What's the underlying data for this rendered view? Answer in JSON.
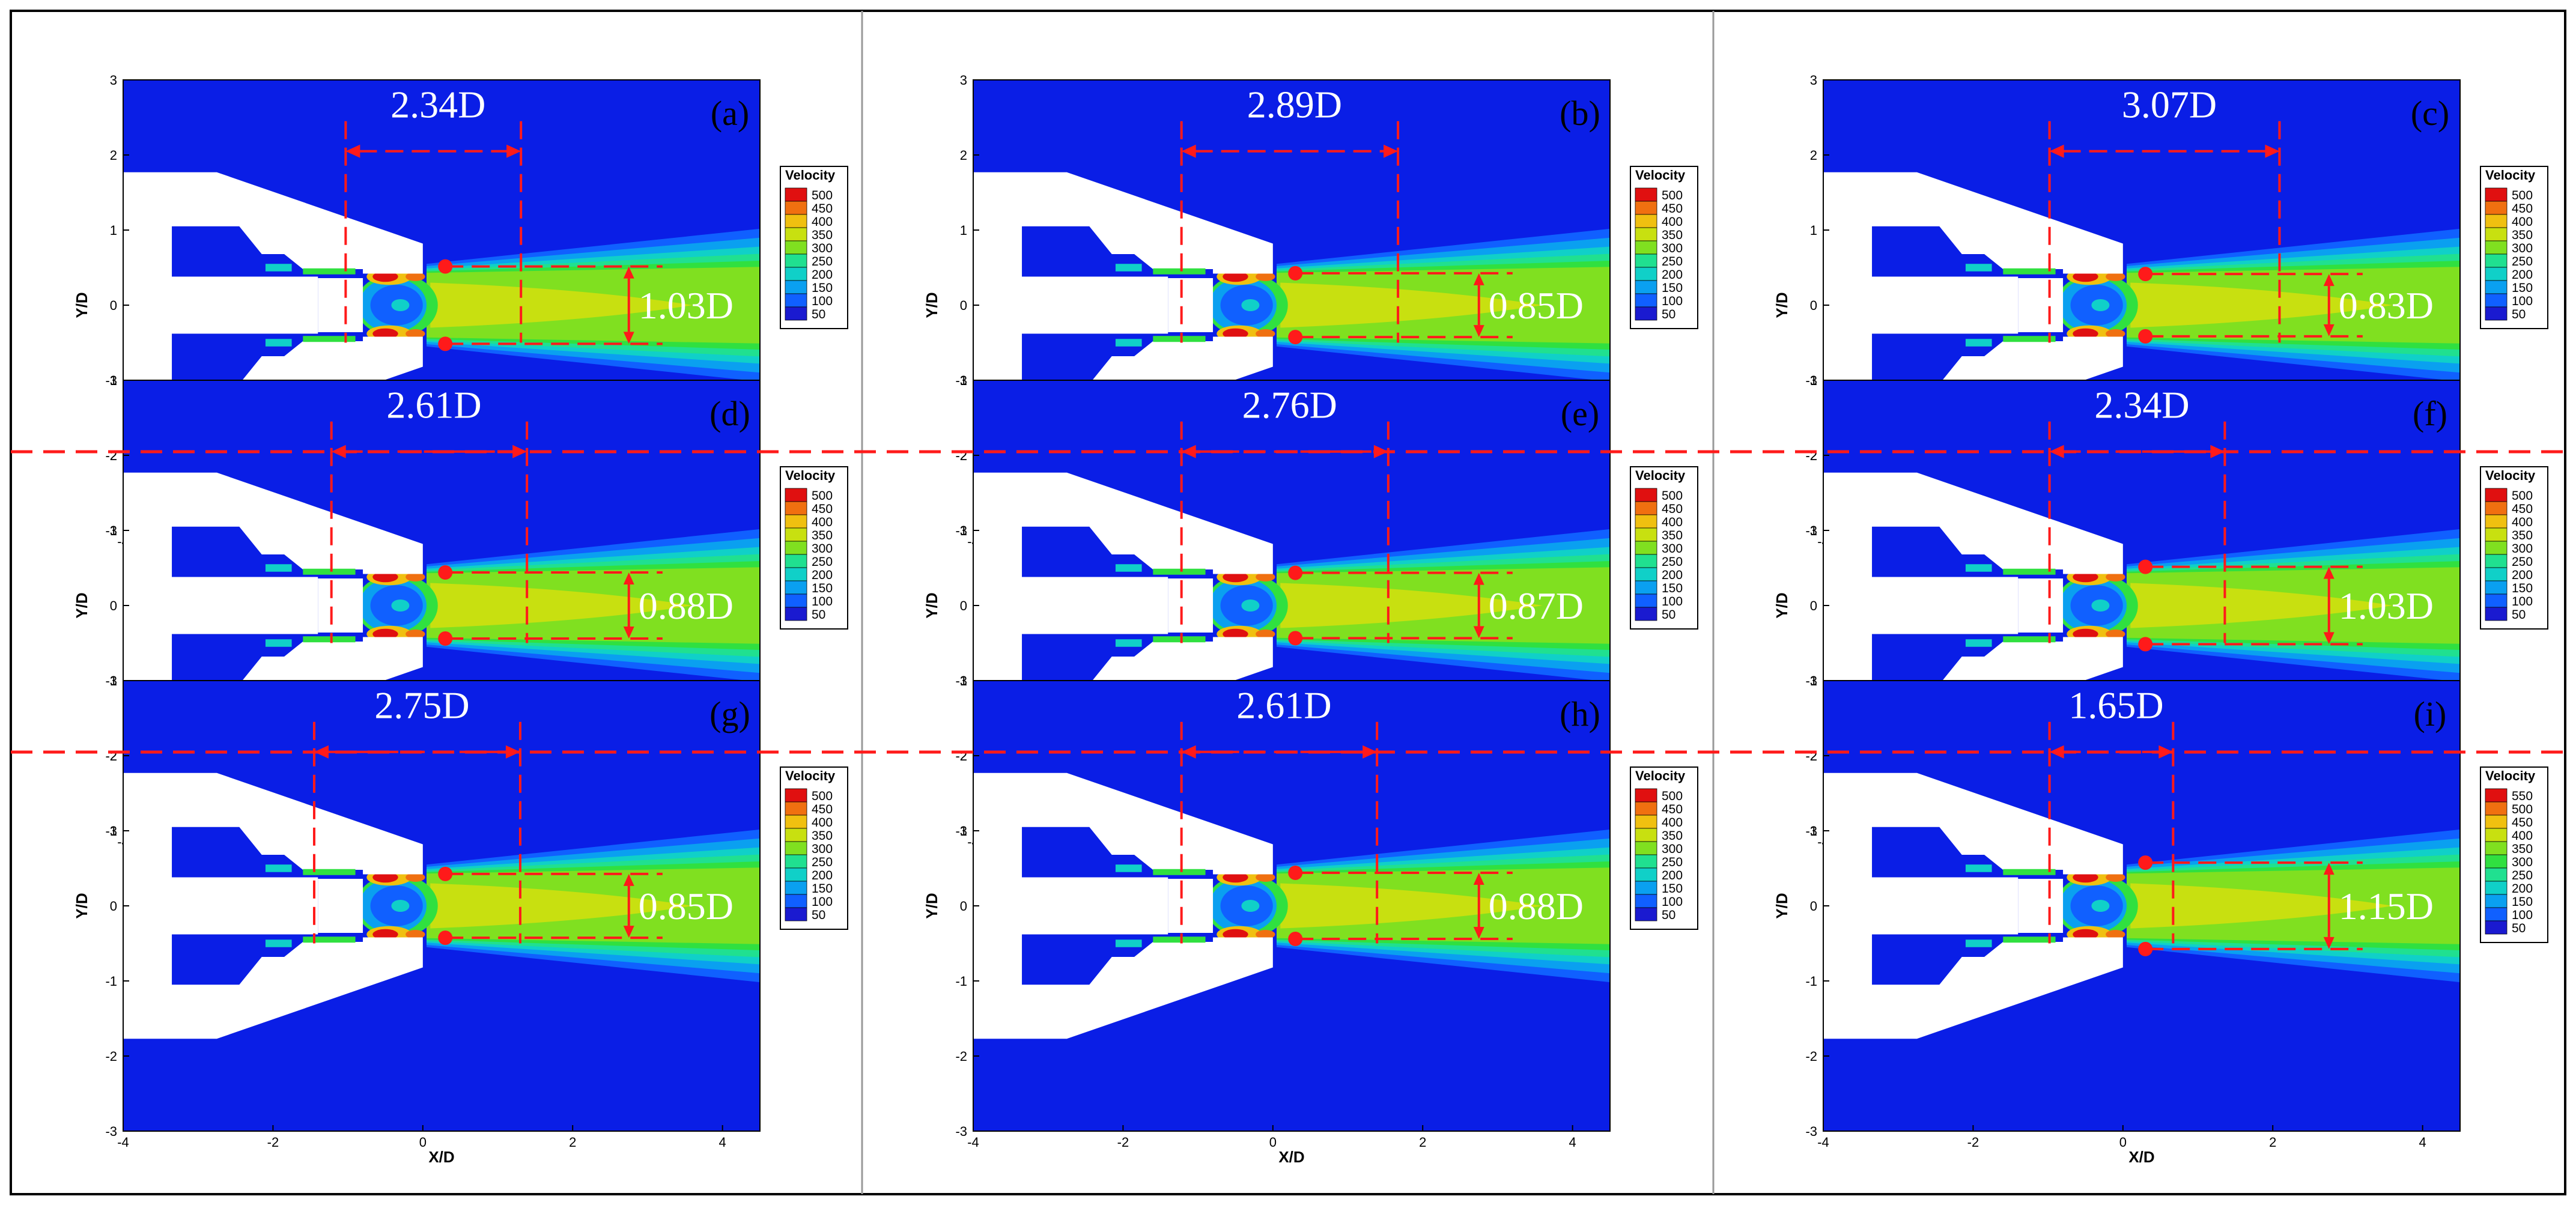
{
  "axes": {
    "xlabel": "X/D",
    "ylabel": "Y/D",
    "xlim": [
      -4,
      4.5
    ],
    "ylim": [
      -3,
      3
    ],
    "xticks": [
      "-4",
      "-2",
      "0",
      "2",
      "4"
    ],
    "yticks": [
      "3",
      "2",
      "1",
      "0",
      "-1",
      "-2",
      "-3"
    ]
  },
  "legend_title": "Velocity",
  "legend_levels": [
    "500",
    "450",
    "400",
    "350",
    "300",
    "250",
    "200",
    "150",
    "100",
    "50"
  ],
  "legend_levels_i": [
    "550",
    "500",
    "450",
    "400",
    "350",
    "300",
    "250",
    "200",
    "150",
    "100",
    "50"
  ],
  "colors": {
    "background_flow": "#0a1ee6",
    "annotation": "#ff1a1a",
    "solid_wall": "#ffffff",
    "level_ramp": [
      "#1a1ad0",
      "#1060ff",
      "#0aa0f0",
      "#10d0c8",
      "#20e090",
      "#30e040",
      "#80e020",
      "#c8e010",
      "#f0c010",
      "#f07010",
      "#e01010"
    ]
  },
  "panels": [
    {
      "id": "a",
      "label": "(a)",
      "length": "2.34D",
      "width": "1.03D",
      "L": 2.34,
      "W": 1.03,
      "x0": -1.03,
      "core": 0.45
    },
    {
      "id": "b",
      "label": "(b)",
      "length": "2.89D",
      "width": "0.85D",
      "L": 2.89,
      "W": 0.85,
      "x0": -1.22,
      "core": 0.5
    },
    {
      "id": "c",
      "label": "(c)",
      "length": "3.07D",
      "width": "0.83D",
      "L": 3.07,
      "W": 0.83,
      "x0": -0.98,
      "core": 0.4
    },
    {
      "id": "d",
      "label": "(d)",
      "length": "2.61D",
      "width": "0.88D",
      "L": 2.61,
      "W": 0.88,
      "x0": -1.22,
      "core": 0.5
    },
    {
      "id": "e",
      "label": "(e)",
      "length": "2.76D",
      "width": "0.87D",
      "L": 2.76,
      "W": 0.87,
      "x0": -1.22,
      "core": 0.5
    },
    {
      "id": "f",
      "label": "(f)",
      "length": "2.34D",
      "width": "1.03D",
      "L": 2.34,
      "W": 1.03,
      "x0": -0.98,
      "core": 0.4
    },
    {
      "id": "g",
      "label": "(g)",
      "length": "2.75D",
      "width": "0.85D",
      "L": 2.75,
      "W": 0.85,
      "x0": -1.45,
      "core": 0.6
    },
    {
      "id": "h",
      "label": "(h)",
      "length": "2.61D",
      "width": "0.88D",
      "L": 2.61,
      "W": 0.88,
      "x0": -1.22,
      "core": 0.5
    },
    {
      "id": "i",
      "label": "(i)",
      "length": "1.65D",
      "width": "1.15D",
      "L": 1.65,
      "W": 1.15,
      "x0": -0.98,
      "core": 0.35
    }
  ]
}
